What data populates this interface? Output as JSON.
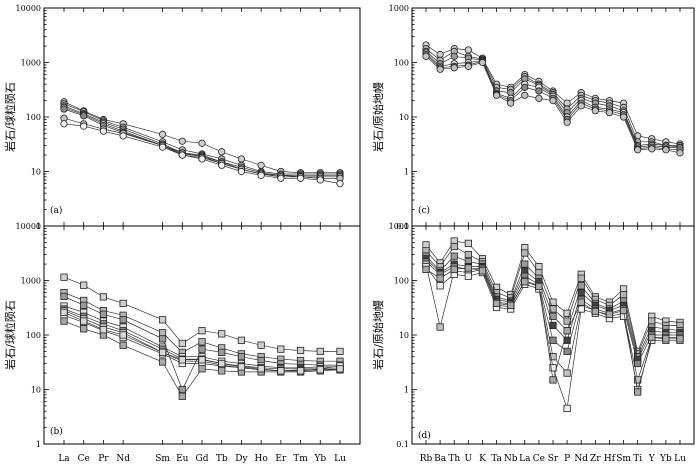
{
  "figure": {
    "panels": [
      "a",
      "b",
      "c",
      "d"
    ]
  },
  "chart_data": [
    {
      "id": "a",
      "panel_label": "(a)",
      "type": "line",
      "marker": "circle",
      "ylabel": "岩石/球粒陨石",
      "yscale": "log",
      "ylim": [
        1,
        10000
      ],
      "yticks": [
        "1",
        "10",
        "100",
        "1000",
        "10000"
      ],
      "categories": [
        "La",
        "Ce",
        "Pr",
        "Nd",
        "Sm",
        "Eu",
        "Gd",
        "Tb",
        "Dy",
        "Ho",
        "Er",
        "Tm",
        "Yb",
        "Lu"
      ],
      "x": [
        1,
        2,
        3,
        4,
        6,
        7,
        8,
        9,
        10,
        11,
        12,
        13,
        14,
        15
      ],
      "series": [
        {
          "name": "a1",
          "values": [
            190,
            130,
            90,
            75,
            48,
            36,
            33,
            23,
            17,
            13,
            10,
            9.5,
            9.5,
            9.5
          ]
        },
        {
          "name": "a2",
          "values": [
            175,
            125,
            85,
            65,
            35,
            25,
            21,
            17,
            13,
            10,
            9,
            9,
            9,
            9
          ]
        },
        {
          "name": "a3",
          "values": [
            160,
            115,
            80,
            60,
            32,
            22,
            20,
            15,
            12,
            9.5,
            8.5,
            8.5,
            8.5,
            8.5
          ]
        },
        {
          "name": "a4",
          "values": [
            150,
            110,
            75,
            55,
            30,
            21,
            19,
            14,
            11,
            9,
            8.5,
            8,
            8,
            8
          ]
        },
        {
          "name": "a5",
          "values": [
            140,
            105,
            70,
            52,
            30,
            22,
            19,
            15,
            11,
            9,
            8,
            8,
            7.5,
            7.5
          ]
        },
        {
          "name": "a6",
          "values": [
            95,
            75,
            60,
            50,
            30,
            20,
            18,
            14,
            11,
            9,
            8,
            8,
            7.5,
            7.5
          ]
        },
        {
          "name": "a7",
          "values": [
            75,
            68,
            55,
            45,
            28,
            20,
            17,
            13,
            10,
            8.5,
            7.5,
            7.5,
            7,
            6
          ]
        }
      ]
    },
    {
      "id": "b",
      "panel_label": "(b)",
      "type": "line",
      "marker": "square",
      "ylabel": "岩石/球粒陨石",
      "yscale": "log",
      "ylim": [
        1,
        10000
      ],
      "yticks": [
        "1",
        "10",
        "100",
        "1000",
        "10000"
      ],
      "xticklabels": [
        "La",
        "Ce",
        "Pr",
        "Nd",
        "Sm",
        "Eu",
        "Gd",
        "Tb",
        "Dy",
        "Ho",
        "Er",
        "Tm",
        "Yb",
        "Lu"
      ],
      "categories": [
        "La",
        "Ce",
        "Pr",
        "Nd",
        "Sm",
        "Eu",
        "Gd",
        "Tb",
        "Dy",
        "Ho",
        "Er",
        "Tm",
        "Yb",
        "Lu"
      ],
      "x": [
        1,
        2,
        3,
        4,
        6,
        7,
        8,
        9,
        10,
        11,
        12,
        13,
        14,
        15
      ],
      "series": [
        {
          "name": "b1",
          "values": [
            1150,
            820,
            500,
            380,
            190,
            70,
            120,
            105,
            80,
            65,
            55,
            52,
            50,
            50
          ]
        },
        {
          "name": "b2",
          "values": [
            600,
            430,
            280,
            230,
            110,
            48,
            75,
            58,
            45,
            40,
            36,
            34,
            33,
            33
          ]
        },
        {
          "name": "b3",
          "values": [
            510,
            350,
            240,
            190,
            85,
            10,
            55,
            48,
            40,
            34,
            30,
            29,
            28,
            28
          ]
        },
        {
          "name": "b4",
          "values": [
            340,
            260,
            180,
            140,
            60,
            40,
            40,
            33,
            30,
            27,
            25,
            25,
            26,
            26
          ]
        },
        {
          "name": "b5",
          "values": [
            300,
            220,
            160,
            120,
            55,
            36,
            36,
            30,
            27,
            25,
            24,
            24,
            24,
            24
          ]
        },
        {
          "name": "b6",
          "values": [
            280,
            200,
            140,
            110,
            48,
            33,
            33,
            28,
            25,
            23,
            22,
            23,
            23,
            23
          ]
        },
        {
          "name": "b7",
          "values": [
            230,
            170,
            120,
            90,
            45,
            30,
            30,
            27,
            25,
            23,
            22,
            22,
            24,
            27
          ]
        },
        {
          "name": "b8",
          "values": [
            180,
            130,
            100,
            65,
            32,
            7.5,
            24,
            22,
            21,
            21,
            21,
            21,
            22,
            23
          ]
        },
        {
          "name": "b9",
          "values": [
            260,
            180,
            125,
            100,
            48,
            35,
            35,
            30,
            26,
            24,
            22,
            22,
            23,
            24
          ]
        }
      ]
    },
    {
      "id": "c",
      "panel_label": "(c)",
      "type": "line",
      "marker": "circle",
      "ylabel": "岩石/原始地幔",
      "yscale": "log",
      "ylim": [
        0.1,
        1000
      ],
      "yticks": [
        "0.1",
        "1",
        "10",
        "100",
        "1000"
      ],
      "categories": [
        "Rb",
        "Ba",
        "Th",
        "U",
        "K",
        "Ta",
        "Nb",
        "La",
        "Ce",
        "Sr",
        "P",
        "Nd",
        "Zr",
        "Hf",
        "Sm",
        "Ti",
        "Y",
        "Yb",
        "Lu"
      ],
      "x": [
        1,
        2,
        3,
        4,
        5,
        6,
        7,
        8,
        9,
        10,
        11,
        12,
        13,
        14,
        15,
        16,
        17,
        18,
        19
      ],
      "series": [
        {
          "name": "c1",
          "values": [
            210,
            140,
            180,
            170,
            120,
            40,
            35,
            60,
            45,
            30,
            18,
            28,
            22,
            20,
            18,
            4.5,
            4,
            3.5,
            3.2
          ]
        },
        {
          "name": "c2",
          "values": [
            180,
            110,
            160,
            130,
            115,
            35,
            32,
            55,
            40,
            28,
            14,
            25,
            20,
            18,
            15,
            3.5,
            3.5,
            3,
            3
          ]
        },
        {
          "name": "c3",
          "values": [
            160,
            95,
            130,
            120,
            110,
            30,
            28,
            50,
            38,
            26,
            12,
            22,
            18,
            16,
            13,
            3,
            3.2,
            3,
            2.8
          ]
        },
        {
          "name": "c4",
          "values": [
            150,
            85,
            95,
            100,
            108,
            27,
            22,
            40,
            35,
            24,
            10,
            20,
            15,
            14,
            12,
            2.8,
            3,
            2.8,
            2.7
          ]
        },
        {
          "name": "c5",
          "values": [
            140,
            80,
            85,
            90,
            105,
            26,
            20,
            35,
            30,
            22,
            9,
            18,
            14,
            13,
            11,
            2.6,
            2.8,
            2.6,
            2.5
          ]
        },
        {
          "name": "c6",
          "values": [
            130,
            75,
            80,
            85,
            100,
            25,
            18,
            25,
            22,
            20,
            8,
            16,
            13,
            12,
            10,
            2.5,
            2.6,
            2.5,
            2.2
          ]
        }
      ]
    },
    {
      "id": "d",
      "panel_label": "(d)",
      "type": "line",
      "marker": "square",
      "ylabel": "岩石/原始地幔",
      "yscale": "log",
      "ylim": [
        0.1,
        1000
      ],
      "yticks": [
        "0.1",
        "1",
        "10",
        "100",
        "1000"
      ],
      "xticklabels": [
        "Rb",
        "Ba",
        "Th",
        "U",
        "K",
        "Ta",
        "Nb",
        "La",
        "Ce",
        "Sr",
        "P",
        "Nd",
        "Zr",
        "Hf",
        "Sm",
        "Ti",
        "Y",
        "Yb",
        "Lu"
      ],
      "categories": [
        "Rb",
        "Ba",
        "Th",
        "U",
        "K",
        "Ta",
        "Nb",
        "La",
        "Ce",
        "Sr",
        "P",
        "Nd",
        "Zr",
        "Hf",
        "Sm",
        "Ti",
        "Y",
        "Yb",
        "Lu"
      ],
      "x": [
        1,
        2,
        3,
        4,
        5,
        6,
        7,
        8,
        9,
        10,
        11,
        12,
        13,
        14,
        15,
        16,
        17,
        18,
        19
      ],
      "series": [
        {
          "name": "d1",
          "values": [
            450,
            210,
            530,
            480,
            250,
            75,
            55,
            400,
            180,
            40,
            25,
            130,
            50,
            40,
            70,
            5,
            22,
            18,
            17
          ]
        },
        {
          "name": "d2",
          "values": [
            350,
            180,
            420,
            300,
            220,
            60,
            48,
            320,
            140,
            30,
            18,
            110,
            45,
            35,
            55,
            4.5,
            18,
            15,
            15
          ]
        },
        {
          "name": "d3",
          "values": [
            280,
            150,
            280,
            220,
            200,
            50,
            42,
            200,
            110,
            22,
            12,
            80,
            38,
            30,
            42,
            4,
            14,
            13,
            12
          ]
        },
        {
          "name": "d4",
          "values": [
            250,
            140,
            200,
            180,
            180,
            45,
            40,
            150,
            95,
            15,
            8,
            60,
            35,
            28,
            35,
            3.5,
            12,
            11,
            11
          ]
        },
        {
          "name": "d5",
          "values": [
            220,
            130,
            180,
            160,
            170,
            40,
            37,
            120,
            85,
            8,
            5,
            45,
            30,
            25,
            30,
            3,
            10,
            10,
            10
          ]
        },
        {
          "name": "d6",
          "values": [
            200,
            14,
            150,
            140,
            160,
            35,
            33,
            100,
            80,
            4,
            2,
            35,
            28,
            22,
            25,
            1.5,
            9,
            9,
            9
          ]
        },
        {
          "name": "d7",
          "values": [
            180,
            80,
            130,
            120,
            140,
            32,
            30,
            85,
            70,
            2.5,
            0.45,
            30,
            25,
            20,
            22,
            1,
            8,
            8,
            8
          ]
        },
        {
          "name": "d8",
          "values": [
            160,
            110,
            160,
            170,
            150,
            38,
            35,
            95,
            78,
            1.5,
            12,
            40,
            27,
            24,
            28,
            0.9,
            9,
            8.5,
            8.5
          ]
        }
      ]
    }
  ]
}
